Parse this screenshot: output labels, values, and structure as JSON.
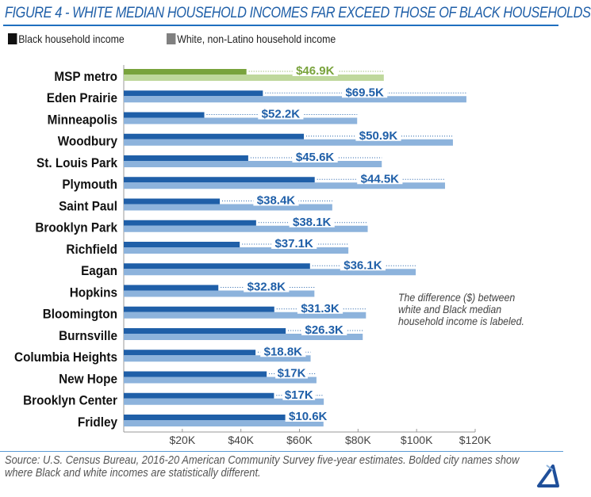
{
  "title": "FIGURE 4 - WHITE MEDIAN HOUSEHOLD INCOMES FAR EXCEED THOSE OF BLACK HOUSEHOLDS",
  "note": "The difference ($) between white and Black median household income is labeled.",
  "source": "Source: U.S. Census Bureau, 2016-20 American Community Survey five-year estimates. Bolded city names show where Black and white incomes are statistically different.",
  "colors": {
    "black_bar": "#1f5fa8",
    "white_bar": "#8db3dc",
    "metro_black": "#79a33c",
    "metro_white": "#bfd89c",
    "label": "#1f5fa8",
    "metro_label": "#79a33c",
    "legend_black": "#111111",
    "legend_white": "#808080"
  },
  "chart_data": {
    "type": "bar",
    "orientation": "horizontal",
    "title": "FIGURE 4 - WHITE MEDIAN HOUSEHOLD INCOMES FAR EXCEED THOSE OF BLACK HOUSEHOLDS",
    "xlabel": "",
    "ylabel": "",
    "xlim": [
      0,
      120000
    ],
    "xticks": [
      20000,
      40000,
      60000,
      80000,
      100000,
      120000
    ],
    "xtick_labels": [
      "$20K",
      "$40K",
      "$60K",
      "$80K",
      "$100K",
      "$120K"
    ],
    "legend": [
      "Black household income",
      "White, non-Latino household income"
    ],
    "legend_position": "top-left",
    "categories": [
      "MSP metro",
      "Eden Prairie",
      "Minneapolis",
      "Woodbury",
      "St. Louis Park",
      "Plymouth",
      "Saint Paul",
      "Brooklyn Park",
      "Richfield",
      "Eagan",
      "Hopkins",
      "Bloomington",
      "Burnsville",
      "Columbia Heights",
      "New Hope",
      "Brooklyn Center",
      "Fridley"
    ],
    "series": [
      {
        "name": "Black household income",
        "values": [
          41900,
          47500,
          27500,
          61500,
          42500,
          65200,
          32800,
          45200,
          39600,
          63600,
          32300,
          51400,
          55300,
          45000,
          48800,
          51300,
          57600
        ]
      },
      {
        "name": "White, non-Latino household income",
        "values": [
          88800,
          117000,
          79700,
          112400,
          88100,
          109700,
          71200,
          83300,
          76700,
          99700,
          65100,
          82700,
          81600,
          63800,
          65800,
          68300,
          68200
        ]
      }
    ],
    "difference_labels": [
      "$46.9K",
      "$69.5K",
      "$52.2K",
      "$50.9K",
      "$45.6K",
      "$44.5K",
      "$38.4K",
      "$38.1K",
      "$37.1K",
      "$36.1K",
      "$32.8K",
      "$31.3K",
      "$26.3K",
      "$18.8K",
      "$17K",
      "$17K",
      "$10.6K"
    ]
  }
}
